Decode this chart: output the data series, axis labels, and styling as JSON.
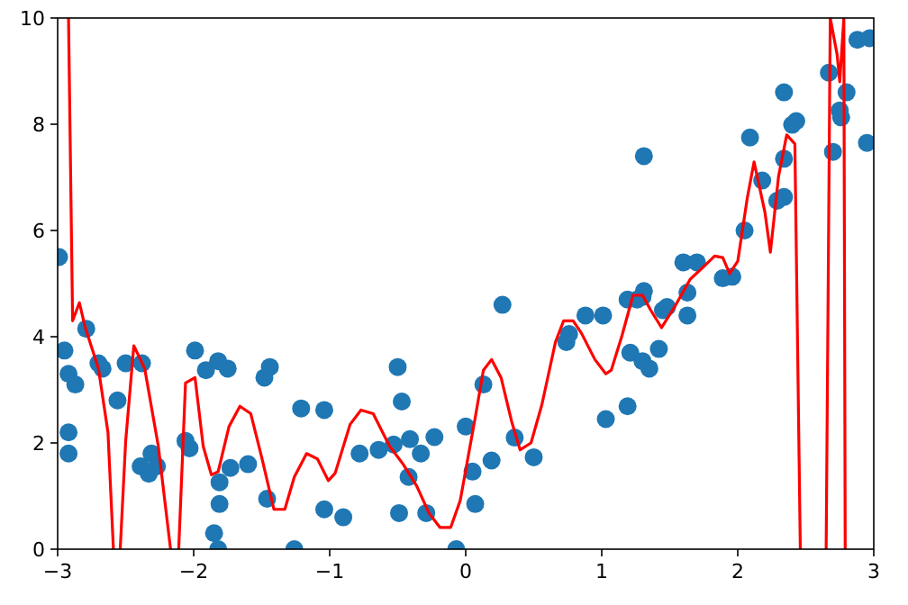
{
  "chart_data": {
    "type": "scatter",
    "xlim": [
      -3,
      3
    ],
    "ylim": [
      0,
      10
    ],
    "xticks": [
      -3,
      -2,
      -1,
      0,
      1,
      2,
      3
    ],
    "yticks": [
      0,
      2,
      4,
      6,
      8,
      10
    ],
    "grid": false,
    "series": [
      {
        "marker": "circle",
        "color": "#1f77b4",
        "x": [
          -2.99,
          -2.95,
          -2.92,
          -2.87,
          -2.92,
          -2.92,
          -2.79,
          -2.7,
          -2.67,
          -2.56,
          -2.5,
          -2.38,
          -2.39,
          -2.33,
          -2.31,
          -2.27,
          -2.06,
          -2.03,
          -1.99,
          -1.91,
          -1.82,
          -1.75,
          -1.81,
          -1.81,
          -1.85,
          -1.82,
          -1.73,
          -1.6,
          -1.48,
          -1.44,
          -1.46,
          -1.21,
          -1.26,
          -1.04,
          -1.04,
          -0.9,
          -0.78,
          -0.64,
          -0.53,
          -0.5,
          -0.47,
          -0.41,
          -0.42,
          -0.33,
          -0.49,
          -0.29,
          -0.23,
          -0.07,
          0,
          0.05,
          0.07,
          0.13,
          0.19,
          0.27,
          0.36,
          0.5,
          0.74,
          0.76,
          0.88,
          1.01,
          1.03,
          1.19,
          1.19,
          1.21,
          1.26,
          1.3,
          1.31,
          1.3,
          1.35,
          1.31,
          1.42,
          1.45,
          1.48,
          1.63,
          1.63,
          1.6,
          1.7,
          1.89,
          1.96,
          2.05,
          2.09,
          2.18,
          2.29,
          2.34,
          2.34,
          2.34,
          2.4,
          2.43,
          2.67,
          2.7,
          2.75,
          2.76,
          2.8,
          2.88,
          2.97,
          2.95
        ],
        "values": [
          5.5,
          3.74,
          3.3,
          3.1,
          2.2,
          1.8,
          4.15,
          3.5,
          3.4,
          2.8,
          3.5,
          3.5,
          1.56,
          1.42,
          1.8,
          1.56,
          2.04,
          1.9,
          3.74,
          3.37,
          3.54,
          3.4,
          1.26,
          0.85,
          0.3,
          0,
          1.53,
          1.6,
          3.23,
          3.43,
          0.95,
          2.65,
          0,
          2.62,
          0.75,
          0.6,
          1.8,
          1.87,
          1.97,
          3.43,
          2.78,
          2.07,
          1.36,
          1.8,
          0.68,
          0.68,
          2.11,
          0,
          2.31,
          1.46,
          0.85,
          3.1,
          1.67,
          4.6,
          2.1,
          1.73,
          3.9,
          4.05,
          4.4,
          4.4,
          2.45,
          2.69,
          4.7,
          3.7,
          4.7,
          4.75,
          4.86,
          3.54,
          3.4,
          7.4,
          3.77,
          4.5,
          4.56,
          4.83,
          4.4,
          5.4,
          5.4,
          5.1,
          5.13,
          6.0,
          7.75,
          6.94,
          6.56,
          6.63,
          7.35,
          8.6,
          7.99,
          8.06,
          8.97,
          7.48,
          8.26,
          8.13,
          8.6,
          9.59,
          9.62,
          7.65
        ]
      },
      {
        "type": "line",
        "color": "#ff0000",
        "line_style": "solid",
        "x": [
          -2.92,
          -2.89,
          -2.84,
          -2.8,
          -2.7,
          -2.63,
          -2.59,
          -2.565,
          -2.54,
          -2.5,
          -2.44,
          -2.36,
          -2.26,
          -2.17,
          -2.14,
          -2.11,
          -2.06,
          -1.99,
          -1.93,
          -1.87,
          -1.82,
          -1.74,
          -1.66,
          -1.58,
          -1.5,
          -1.41,
          -1.33,
          -1.26,
          -1.17,
          -1.09,
          -1.01,
          -0.96,
          -0.85,
          -0.77,
          -0.68,
          -0.56,
          -0.46,
          -0.36,
          -0.27,
          -0.19,
          -0.11,
          -0.04,
          0.07,
          0.13,
          0.19,
          0.26,
          0.34,
          0.4,
          0.48,
          0.56,
          0.66,
          0.72,
          0.79,
          0.85,
          0.95,
          1.03,
          1.07,
          1.15,
          1.23,
          1.3,
          1.36,
          1.44,
          1.54,
          1.65,
          1.75,
          1.83,
          1.89,
          1.94,
          2.0,
          2.07,
          2.12,
          2.2,
          2.24,
          2.3,
          2.36,
          2.42,
          2.46,
          2.55,
          2.65,
          2.68,
          2.73,
          2.75,
          2.78,
          2.79
        ],
        "values": [
          10,
          4.3,
          4.64,
          4.2,
          3.4,
          2.2,
          0,
          null,
          0,
          2.03,
          3.83,
          3.4,
          1.94,
          0,
          null,
          0,
          3.13,
          3.23,
          1.94,
          1.4,
          1.46,
          2.31,
          2.69,
          2.55,
          1.73,
          0.75,
          0.75,
          1.36,
          1.8,
          1.7,
          1.29,
          1.43,
          2.35,
          2.62,
          2.55,
          1.94,
          1.6,
          1.19,
          0.68,
          0.41,
          0.41,
          0.92,
          2.48,
          3.37,
          3.57,
          3.23,
          2.38,
          1.87,
          2.0,
          2.72,
          3.9,
          4.3,
          4.3,
          4.07,
          3.57,
          3.3,
          3.37,
          4.03,
          4.78,
          4.78,
          4.5,
          4.17,
          4.58,
          5.08,
          5.32,
          5.52,
          5.49,
          5.19,
          5.42,
          6.61,
          7.29,
          6.34,
          5.59,
          7.02,
          7.8,
          7.63,
          0,
          null,
          0,
          10,
          9.32,
          8.8,
          10,
          0
        ]
      }
    ]
  }
}
